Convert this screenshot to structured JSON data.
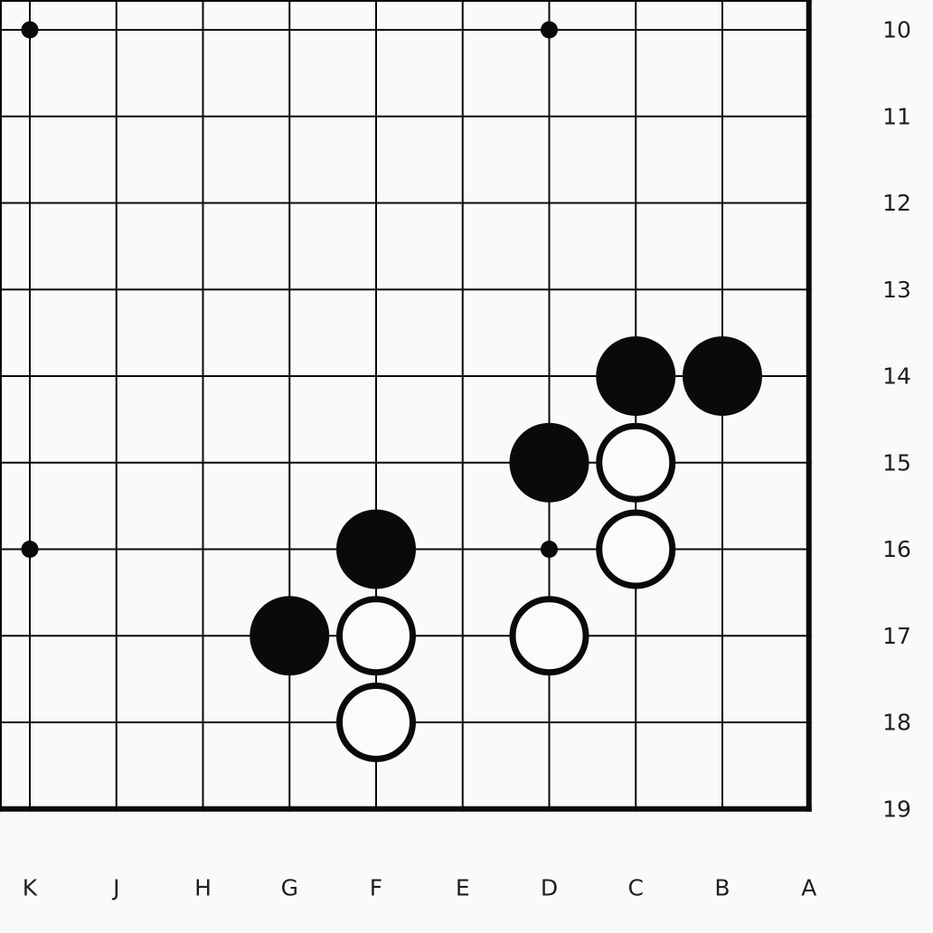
{
  "board": {
    "title": "go-board-diagram",
    "column_labels": [
      "K",
      "J",
      "H",
      "G",
      "F",
      "E",
      "D",
      "C",
      "B",
      "A"
    ],
    "row_labels": [
      "10",
      "11",
      "12",
      "13",
      "14",
      "15",
      "16",
      "17",
      "18",
      "19"
    ],
    "star_points": [
      {
        "col": "K",
        "row": "10"
      },
      {
        "col": "D",
        "row": "10"
      },
      {
        "col": "K",
        "row": "16"
      },
      {
        "col": "D",
        "row": "16"
      }
    ],
    "stones": [
      {
        "color": "black",
        "col": "C",
        "row": "14"
      },
      {
        "color": "black",
        "col": "B",
        "row": "14"
      },
      {
        "color": "black",
        "col": "D",
        "row": "15"
      },
      {
        "color": "black",
        "col": "F",
        "row": "16"
      },
      {
        "color": "black",
        "col": "G",
        "row": "17"
      },
      {
        "color": "white",
        "col": "C",
        "row": "15"
      },
      {
        "color": "white",
        "col": "C",
        "row": "16"
      },
      {
        "color": "white",
        "col": "D",
        "row": "17"
      },
      {
        "color": "white",
        "col": "F",
        "row": "17"
      },
      {
        "color": "white",
        "col": "F",
        "row": "18"
      }
    ],
    "colors": {
      "background": "#fbfafb",
      "grid_line": "#0a0a0a",
      "edge_line": "#0a0a0a",
      "star_point": "#0a0a0a",
      "stone_black": "#0a0a0a",
      "stone_white_fill": "#fcfbfc",
      "stone_white_ring": "#0a0a0a",
      "label_text": "#221e20"
    }
  }
}
